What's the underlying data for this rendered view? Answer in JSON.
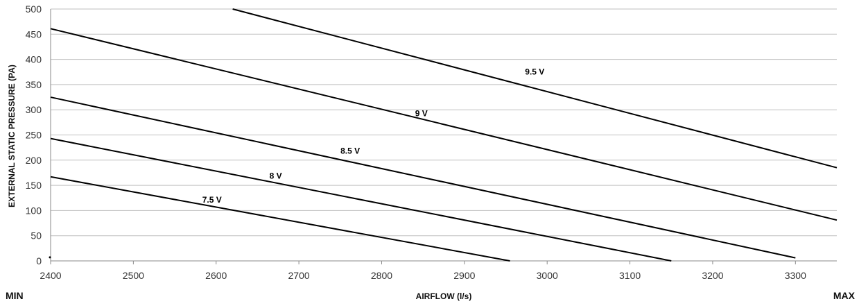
{
  "chart_data": {
    "type": "line",
    "title": "",
    "xlabel": "AIRFLOW (l/s)",
    "ylabel": "EXTERNAL STATIC PRESSURE (PA)",
    "xlim": [
      2400,
      3350
    ],
    "ylim": [
      0,
      500
    ],
    "x_ticks": [
      2400,
      2500,
      2600,
      2700,
      2800,
      2900,
      3000,
      3100,
      3200,
      3300
    ],
    "y_ticks": [
      0,
      50,
      100,
      150,
      200,
      250,
      300,
      350,
      400,
      450,
      500
    ],
    "grid": "horizontal",
    "line_color": "#000000",
    "grid_color": "#bfbfbf",
    "series": [
      {
        "name": "7.5  V",
        "points": [
          [
            2400,
            167
          ],
          [
            2955,
            0
          ]
        ]
      },
      {
        "name": "8 V",
        "points": [
          [
            2400,
            243
          ],
          [
            3150,
            0
          ]
        ]
      },
      {
        "name": "8.5 V",
        "points": [
          [
            2400,
            325
          ],
          [
            3300,
            6
          ]
        ]
      },
      {
        "name": "9 V",
        "points": [
          [
            2400,
            461
          ],
          [
            3350,
            81
          ]
        ]
      },
      {
        "name": "9.5 V",
        "points": [
          [
            2620,
            500
          ],
          [
            3350,
            185
          ]
        ]
      }
    ],
    "corner_labels": {
      "min": "MIN",
      "max": "MAX"
    }
  }
}
